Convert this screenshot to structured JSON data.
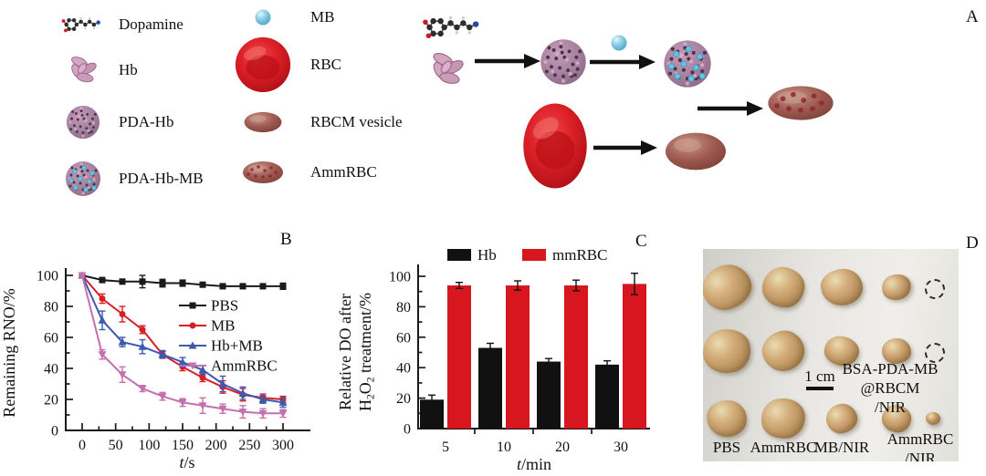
{
  "panel_labels": {
    "a": "A",
    "b": "B",
    "c": "C",
    "d": "D"
  },
  "legend": {
    "left": [
      {
        "icon": "dopamine-molecule",
        "label": "Dopamine"
      },
      {
        "icon": "hb-protein",
        "label": "Hb"
      },
      {
        "icon": "pda-hb-sphere",
        "label": "PDA-Hb"
      },
      {
        "icon": "pda-hb-mb-sphere",
        "label": "PDA-Hb-MB"
      }
    ],
    "right": [
      {
        "icon": "mb-sphere",
        "label": "MB"
      },
      {
        "icon": "rbc-cell",
        "label": "RBC"
      },
      {
        "icon": "rbcm-vesicle",
        "label": "RBCM vesicle"
      },
      {
        "icon": "ammrbc-vesicle",
        "label": "AmmRBC"
      }
    ]
  },
  "colors": {
    "series_black": "#1a1a1a",
    "series_red": "#d91f26",
    "series_blue": "#3d59b0",
    "series_pink": "#c46fae",
    "bar_red": "#d8161f",
    "mb_blue": "#7ec8e6",
    "pda_mauve": "#a87f9d",
    "vesicle_brown": "#9d584f",
    "tumor_tan": "#c29a66"
  },
  "chart_data": [
    {
      "id": "panelB",
      "type": "line",
      "xlabel_italic": "t",
      "xlabel_rest": "/s",
      "ylabel": "Remaining RNO/%",
      "xticks": [
        0,
        50,
        100,
        150,
        200,
        250,
        300
      ],
      "yticks": [
        0,
        20,
        40,
        60,
        80,
        100
      ],
      "xlim": [
        0,
        300
      ],
      "ylim": [
        0,
        100
      ],
      "grid": false,
      "legend_position": "middle-right",
      "x": [
        0,
        30,
        60,
        90,
        120,
        150,
        180,
        210,
        240,
        270,
        300
      ],
      "series": [
        {
          "name": "PBS",
          "color": "#1a1a1a",
          "marker": "square",
          "values": [
            100,
            97,
            96,
            96,
            95,
            95,
            94,
            93,
            93,
            93,
            93
          ],
          "errors": [
            1,
            1.5,
            1.5,
            4,
            2.5,
            2,
            1.5,
            1.5,
            1.5,
            1.5,
            2
          ]
        },
        {
          "name": "MB",
          "color": "#d91f26",
          "marker": "circle",
          "values": [
            100,
            85,
            75,
            65,
            49,
            41,
            34,
            28,
            23,
            21,
            20
          ],
          "errors": [
            1,
            3,
            5,
            2.5,
            2,
            2.5,
            2.5,
            4,
            4,
            2.5,
            2
          ]
        },
        {
          "name": "Hb+MB",
          "color": "#3d59b0",
          "marker": "triangle",
          "values": [
            100,
            71,
            57,
            54,
            49,
            44,
            39,
            30,
            24,
            20,
            18
          ],
          "errors": [
            1,
            6,
            3,
            4.5,
            2.5,
            3,
            3,
            5,
            4,
            2.5,
            3
          ]
        },
        {
          "name": "AmmRBC",
          "color": "#c46fae",
          "marker": "triangle-down",
          "values": [
            100,
            49,
            36,
            27,
            22,
            18,
            16,
            14,
            12,
            11,
            11
          ],
          "errors": [
            1,
            3,
            5,
            2,
            2.5,
            2.5,
            5,
            3,
            4,
            3,
            2.5
          ]
        }
      ]
    },
    {
      "id": "panelC",
      "type": "bar",
      "xlabel_italic": "t",
      "xlabel_rest": "/min",
      "ylabel_lines": [
        "Relative DO after",
        "H₂O₂ treatment/%"
      ],
      "categories": [
        "5",
        "10",
        "20",
        "30"
      ],
      "yticks": [
        0,
        20,
        40,
        60,
        80,
        100
      ],
      "ylim": [
        0,
        100
      ],
      "grid": false,
      "legend_position": "top",
      "series": [
        {
          "name": "Hb",
          "color": "#111111",
          "values": [
            19,
            53,
            44,
            42
          ],
          "errors": [
            3,
            3,
            2,
            2.5
          ]
        },
        {
          "name": "mmRBC",
          "color": "#d8161f",
          "values": [
            94,
            94,
            94,
            95
          ],
          "errors": [
            2,
            3,
            3.5,
            7
          ]
        }
      ]
    }
  ],
  "photo": {
    "labels": {
      "bottom": [
        "PBS",
        "AmmRBC",
        "MB/NIR"
      ],
      "ammrbc_nir": [
        "AmmRBC",
        "/NIR"
      ],
      "bsa": [
        "BSA-PDA-MB",
        "@RBCM",
        "/NIR"
      ],
      "scale": "1 cm"
    },
    "rows": [
      {
        "items": [
          {
            "type": "tumor",
            "w": 54,
            "h": 48
          },
          {
            "type": "tumor",
            "w": 46,
            "h": 44
          },
          {
            "type": "tumor",
            "w": 46,
            "h": 40
          },
          {
            "type": "tumor",
            "w": 32,
            "h": 28
          },
          {
            "type": "dashed",
            "w": 18,
            "h": 18
          }
        ]
      },
      {
        "items": [
          {
            "type": "tumor",
            "w": 52,
            "h": 48
          },
          {
            "type": "tumor",
            "w": 46,
            "h": 44
          },
          {
            "type": "tumor",
            "w": 38,
            "h": 32
          },
          {
            "type": "tumor",
            "w": 32,
            "h": 28
          },
          {
            "type": "dashed",
            "w": 18,
            "h": 18
          }
        ]
      },
      {
        "items": [
          {
            "type": "tumor",
            "w": 44,
            "h": 40
          },
          {
            "type": "tumor",
            "w": 48,
            "h": 44
          },
          {
            "type": "tumor",
            "w": 34,
            "h": 32
          },
          {
            "type": "tumor",
            "w": 32,
            "h": 30
          },
          {
            "type": "tumor",
            "w": 16,
            "h": 14
          }
        ]
      }
    ]
  }
}
